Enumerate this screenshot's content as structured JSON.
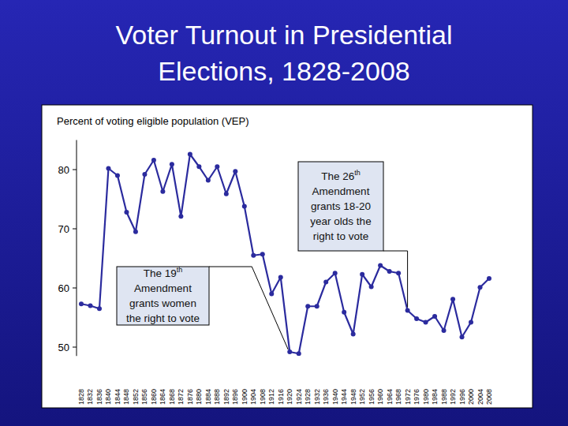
{
  "chart_data": {
    "type": "line",
    "title": "Voter Turnout in Presidential Elections, 1828-2008",
    "y_label": "Percent of voting eligible population (VEP)",
    "categories": [
      "1828",
      "1832",
      "1836",
      "1840",
      "1844",
      "1848",
      "1852",
      "1856",
      "1860",
      "1864",
      "1868",
      "1872",
      "1876",
      "1880",
      "1884",
      "1888",
      "1892",
      "1896",
      "1900",
      "1904",
      "1908",
      "1912",
      "1916",
      "1920",
      "1924",
      "1928",
      "1932",
      "1936",
      "1940",
      "1944",
      "1948",
      "1952",
      "1956",
      "1960",
      "1964",
      "1968",
      "1972",
      "1976",
      "1980",
      "1984",
      "1988",
      "1992",
      "1996",
      "2000",
      "2004",
      "2008"
    ],
    "values": [
      57.3,
      57.0,
      56.5,
      80.2,
      79.0,
      72.8,
      69.5,
      79.2,
      81.6,
      76.3,
      80.9,
      72.1,
      82.6,
      80.5,
      78.2,
      80.5,
      75.9,
      79.7,
      73.8,
      65.5,
      65.7,
      59.0,
      61.8,
      49.2,
      48.9,
      56.9,
      56.9,
      61.0,
      62.5,
      55.9,
      52.2,
      62.3,
      60.2,
      63.8,
      62.8,
      62.5,
      56.2,
      54.8,
      54.2,
      55.2,
      52.8,
      58.1,
      51.7,
      54.2,
      60.1,
      61.6
    ],
    "color": "#2b2b9e",
    "marker": "circle",
    "ylim": [
      48.5,
      85
    ],
    "yticks": [
      50,
      60,
      70,
      80
    ],
    "annotations": [
      {
        "text": [
          "The 26th",
          "Amendment",
          "grants 18-20",
          "year olds the",
          "right to vote"
        ],
        "x": "1972"
      },
      {
        "text": [
          "The 19th",
          "Amendment",
          "grants women",
          "the right to vote"
        ],
        "x": "1920"
      }
    ]
  }
}
